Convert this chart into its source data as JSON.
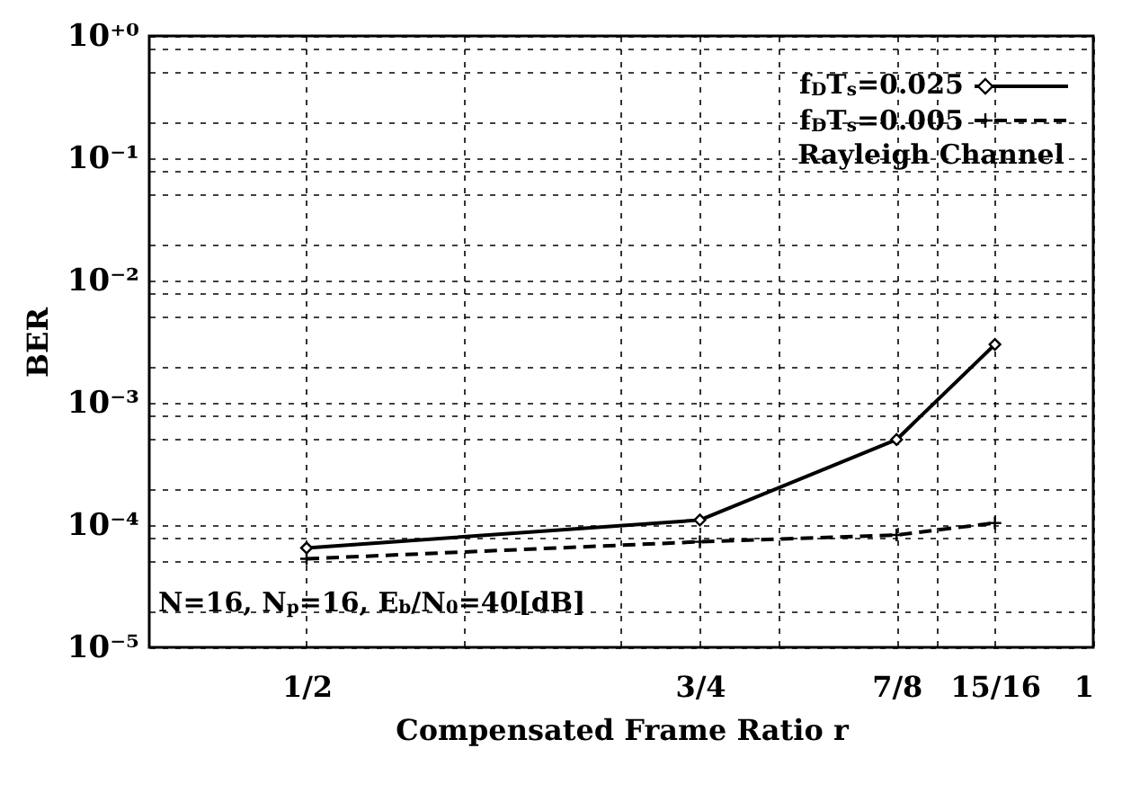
{
  "chart_data": {
    "type": "line",
    "xlabel": "Compensated Frame Ratio r",
    "ylabel": "BER",
    "x": [
      0.5,
      0.75,
      0.875,
      0.9375
    ],
    "series": [
      {
        "name": "f$_{D}$T$_{s}$=0.025",
        "color": "#000000",
        "marker": "diamond",
        "line_style": "solid",
        "values": [
          6.5e-05,
          0.00011,
          0.0005,
          0.003
        ]
      },
      {
        "name": "f$_{D}$T$_{s}$=0.005",
        "color": "#000000",
        "marker": "cross",
        "line_style": "dashed",
        "values": [
          5.3e-05,
          7.3e-05,
          8.3e-05,
          0.000104
        ]
      }
    ],
    "annotations": [
      "Rayleigh Channel",
      "N=16, N$_{p}$=16, E$_{b}$/N$_{0}$=40[dB]"
    ],
    "log": "y",
    "grid": true,
    "legend": "top right",
    "xlim": [
      0.4,
      1.0
    ],
    "xticks": [
      {
        "value": 0.5,
        "label": "1/2"
      },
      {
        "value": 0.6,
        "label": null
      },
      {
        "value": 0.7,
        "label": null
      },
      {
        "value": 0.75,
        "label": "3/4"
      },
      {
        "value": 0.8,
        "label": null
      },
      {
        "value": 0.875,
        "label": "7/8"
      },
      {
        "value": 0.9,
        "label": null
      },
      {
        "value": 0.9375,
        "label": "15/16"
      },
      {
        "value": 1.0,
        "label": "1"
      }
    ],
    "ylim": [
      1e-05,
      1
    ],
    "yticks": [
      {
        "value": 1e-05,
        "label": "10⁻⁵"
      },
      {
        "value": 2e-05,
        "label": null
      },
      {
        "value": 5e-05,
        "label": null
      },
      {
        "value": 8e-05,
        "label": null
      },
      {
        "value": 0.0001,
        "label": "10⁻⁴"
      },
      {
        "value": 0.0002,
        "label": null
      },
      {
        "value": 0.0005,
        "label": null
      },
      {
        "value": 0.0008,
        "label": null
      },
      {
        "value": 0.001,
        "label": "10⁻³"
      },
      {
        "value": 0.002,
        "label": null
      },
      {
        "value": 0.005,
        "label": null
      },
      {
        "value": 0.008,
        "label": null
      },
      {
        "value": 0.01,
        "label": "10⁻²"
      },
      {
        "value": 0.02,
        "label": null
      },
      {
        "value": 0.05,
        "label": null
      },
      {
        "value": 0.08,
        "label": null
      },
      {
        "value": 0.1,
        "label": "10⁻¹"
      },
      {
        "value": 0.2,
        "label": null
      },
      {
        "value": 0.5,
        "label": null
      },
      {
        "value": 0.8,
        "label": null
      },
      {
        "value": 1,
        "label": "10⁺⁰"
      }
    ]
  }
}
